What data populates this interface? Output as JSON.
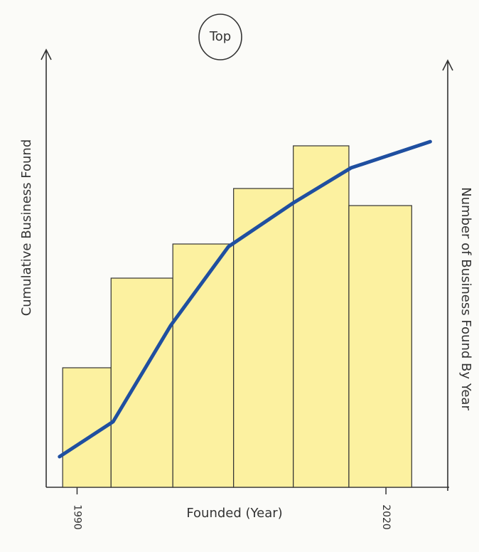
{
  "chart_data": {
    "type": "histogram",
    "title": "Top",
    "xlabel": "Founded (Year)",
    "ylabel": "Cumulative Business Found",
    "y2label": "Number of Business Found By Year",
    "bins": [
      1988.6,
      1993.3,
      1999.3,
      2005.2,
      2011.0,
      2016.4,
      2022.5
    ],
    "values": [
      28,
      49,
      57,
      70,
      80,
      66
    ],
    "axis": "y2",
    "color": "#fcf1a0",
    "cumulative": {
      "x": [
        1988.3,
        1993.5,
        1999.1,
        2004.7,
        2011.0,
        2016.6,
        2024.3
      ],
      "values": [
        7,
        15,
        37,
        55,
        65,
        73,
        79
      ],
      "color": "#1f4fa0",
      "axis": "y"
    },
    "xlim": [
      1987,
      2026
    ],
    "xticks": [
      1990,
      2020
    ],
    "ylim": [
      0,
      100
    ],
    "y2lim": [
      0,
      100
    ]
  }
}
